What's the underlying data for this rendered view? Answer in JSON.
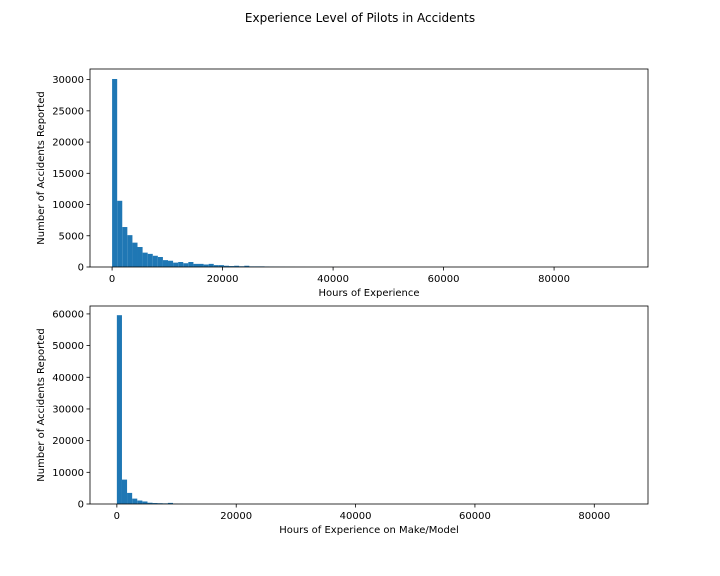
{
  "figure": {
    "title": "Experience Level of Pilots in Accidents"
  },
  "colors": {
    "bar": "#1f77b4",
    "axis": "#000000",
    "background": "#ffffff"
  },
  "chart_data": [
    {
      "type": "bar",
      "subtype": "histogram",
      "xlabel": "Hours of Experience",
      "ylabel": "Number of Accidents Reported",
      "xlim": [
        -4000,
        97000
      ],
      "ylim": [
        0,
        31700
      ],
      "xticks": [
        0,
        20000,
        40000,
        60000,
        80000
      ],
      "yticks": [
        0,
        5000,
        10000,
        15000,
        20000,
        25000,
        30000
      ],
      "bin_start": 0,
      "bin_width": 920,
      "values": [
        30100,
        10600,
        6400,
        5100,
        3900,
        3200,
        2300,
        2100,
        1800,
        1600,
        1100,
        1000,
        700,
        800,
        600,
        800,
        500,
        500,
        400,
        500,
        300,
        300,
        200,
        150,
        200,
        120,
        200,
        100,
        100,
        100,
        80,
        60,
        50,
        40,
        30,
        25,
        20,
        15,
        10,
        10,
        8,
        6,
        5,
        4,
        3
      ]
    },
    {
      "type": "bar",
      "subtype": "histogram",
      "xlabel": "Hours of Experience on Make/Model",
      "ylabel": "Number of Accidents Reported",
      "xlim": [
        -4500,
        89000
      ],
      "ylim": [
        0,
        62500
      ],
      "xticks": [
        0,
        20000,
        40000,
        60000,
        80000
      ],
      "yticks": [
        0,
        10000,
        20000,
        30000,
        40000,
        50000,
        60000
      ],
      "bin_start": 0,
      "bin_width": 855,
      "values": [
        59600,
        7700,
        3500,
        1700,
        1100,
        800,
        400,
        300,
        250,
        200,
        350,
        80,
        60,
        40,
        30,
        20,
        15,
        10,
        8,
        5
      ]
    }
  ]
}
